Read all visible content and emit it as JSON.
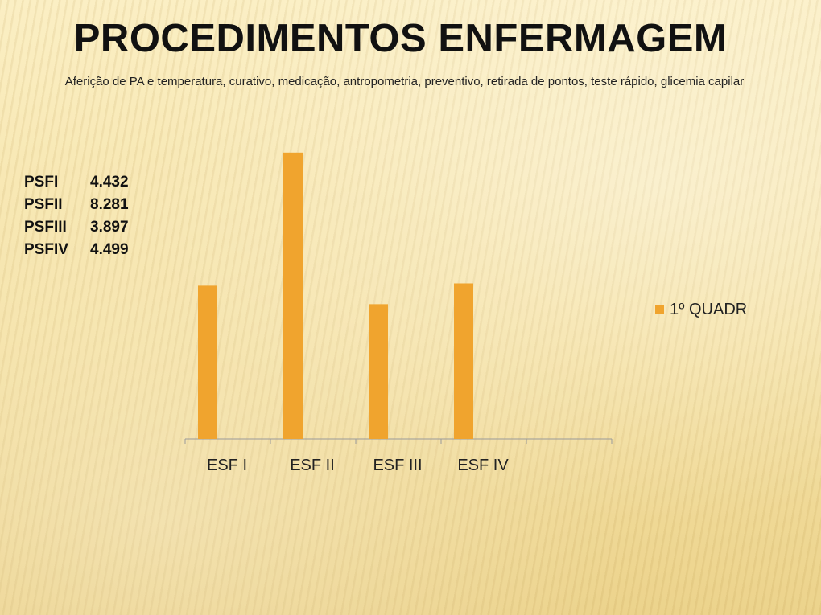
{
  "slide": {
    "title": "PROCEDIMENTOS ENFERMAGEM",
    "subtitle": "Aferição de PA e temperatura,  curativo,  medicação, antropometria,  preventivo,  retirada de pontos, teste rápido, glicemia capilar"
  },
  "stats": [
    {
      "name": "PSFI",
      "value": "4.432"
    },
    {
      "name": "PSFII",
      "value": "8.281"
    },
    {
      "name": "PSFIII",
      "value": "3.897"
    },
    {
      "name": "PSFIV",
      "value": "4.499"
    }
  ],
  "chart_data": {
    "type": "bar",
    "categories": [
      "ESF I",
      "ESF II",
      "ESF III",
      "ESF IV",
      ""
    ],
    "series": [
      {
        "name": "1º QUADR",
        "values": [
          4432,
          8281,
          3897,
          4499,
          null
        ],
        "color": "#f0a42e"
      }
    ],
    "ylim": [
      0,
      8300
    ],
    "grid": false,
    "legend": "right",
    "axis_color": "#9a9a9a"
  }
}
